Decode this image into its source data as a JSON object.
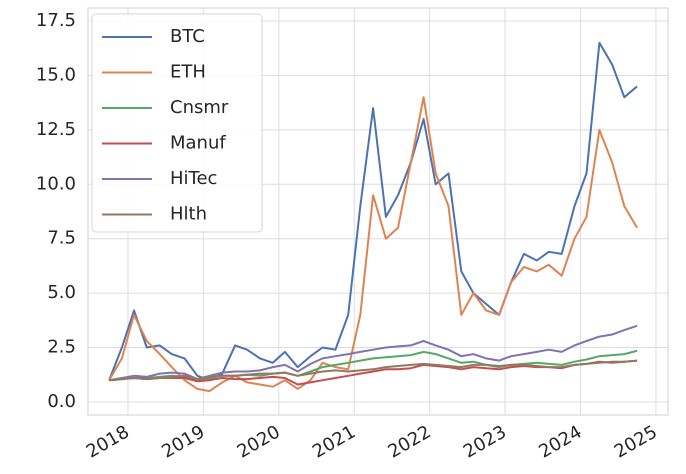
{
  "chart_data": {
    "type": "line",
    "x": [
      2017.75,
      2017.92,
      2018.08,
      2018.25,
      2018.42,
      2018.58,
      2018.75,
      2018.92,
      2019.08,
      2019.25,
      2019.42,
      2019.58,
      2019.75,
      2019.92,
      2020.08,
      2020.25,
      2020.42,
      2020.58,
      2020.75,
      2020.92,
      2021.08,
      2021.25,
      2021.42,
      2021.58,
      2021.75,
      2021.92,
      2022.08,
      2022.25,
      2022.42,
      2022.58,
      2022.75,
      2022.92,
      2023.08,
      2023.25,
      2023.42,
      2023.58,
      2023.75,
      2023.92,
      2024.08,
      2024.25,
      2024.42,
      2024.58,
      2024.75
    ],
    "series": [
      {
        "name": "BTC",
        "color": "#4c72b0",
        "values": [
          1.0,
          2.5,
          4.2,
          2.5,
          2.6,
          2.2,
          2.0,
          1.2,
          1.0,
          1.3,
          2.6,
          2.4,
          2.0,
          1.8,
          2.3,
          1.6,
          2.1,
          2.5,
          2.4,
          4.0,
          9.0,
          13.5,
          8.5,
          9.5,
          11.0,
          13.0,
          10.0,
          10.5,
          6.0,
          5.0,
          4.5,
          4.0,
          5.5,
          6.8,
          6.5,
          6.9,
          6.8,
          9.0,
          10.5,
          16.5,
          15.5,
          14.0,
          14.5
        ]
      },
      {
        "name": "ETH",
        "color": "#dd8452",
        "values": [
          1.0,
          2.0,
          4.0,
          2.8,
          2.2,
          1.6,
          1.0,
          0.6,
          0.5,
          0.9,
          1.2,
          0.9,
          0.8,
          0.7,
          1.0,
          0.6,
          1.0,
          1.8,
          1.6,
          1.5,
          4.0,
          9.5,
          7.5,
          8.0,
          11.0,
          14.0,
          10.5,
          9.0,
          4.0,
          5.0,
          4.2,
          4.0,
          5.5,
          6.2,
          6.0,
          6.3,
          5.8,
          7.5,
          8.5,
          12.5,
          11.0,
          9.0,
          8.0
        ]
      },
      {
        "name": "Cnsmr",
        "color": "#55a868",
        "values": [
          1.0,
          1.05,
          1.1,
          1.1,
          1.15,
          1.2,
          1.15,
          1.0,
          1.1,
          1.2,
          1.2,
          1.25,
          1.2,
          1.3,
          1.35,
          1.2,
          1.4,
          1.6,
          1.7,
          1.8,
          1.9,
          2.0,
          2.05,
          2.1,
          2.15,
          2.3,
          2.2,
          2.0,
          1.8,
          1.85,
          1.7,
          1.6,
          1.7,
          1.75,
          1.8,
          1.75,
          1.7,
          1.85,
          1.95,
          2.1,
          2.15,
          2.2,
          2.35
        ]
      },
      {
        "name": "Manuf",
        "color": "#c44e52",
        "values": [
          1.0,
          1.05,
          1.1,
          1.05,
          1.1,
          1.1,
          1.1,
          0.95,
          1.0,
          1.1,
          1.05,
          1.05,
          1.1,
          1.15,
          1.1,
          0.8,
          0.9,
          1.0,
          1.1,
          1.2,
          1.3,
          1.4,
          1.5,
          1.5,
          1.55,
          1.7,
          1.65,
          1.6,
          1.5,
          1.6,
          1.55,
          1.5,
          1.6,
          1.65,
          1.6,
          1.6,
          1.55,
          1.7,
          1.75,
          1.85,
          1.8,
          1.85,
          1.9
        ]
      },
      {
        "name": "HiTec",
        "color": "#8172b3",
        "values": [
          1.0,
          1.1,
          1.2,
          1.15,
          1.3,
          1.35,
          1.3,
          1.05,
          1.2,
          1.35,
          1.4,
          1.4,
          1.45,
          1.6,
          1.7,
          1.4,
          1.75,
          2.0,
          2.1,
          2.2,
          2.3,
          2.4,
          2.5,
          2.55,
          2.6,
          2.8,
          2.6,
          2.4,
          2.1,
          2.2,
          2.0,
          1.9,
          2.1,
          2.2,
          2.3,
          2.4,
          2.3,
          2.6,
          2.8,
          3.0,
          3.1,
          3.3,
          3.5
        ]
      },
      {
        "name": "Hlth",
        "color": "#937860",
        "values": [
          1.0,
          1.05,
          1.1,
          1.05,
          1.1,
          1.15,
          1.2,
          1.05,
          1.15,
          1.2,
          1.2,
          1.25,
          1.3,
          1.3,
          1.35,
          1.2,
          1.3,
          1.4,
          1.45,
          1.4,
          1.45,
          1.5,
          1.6,
          1.65,
          1.7,
          1.75,
          1.7,
          1.65,
          1.6,
          1.7,
          1.7,
          1.65,
          1.7,
          1.7,
          1.65,
          1.6,
          1.6,
          1.7,
          1.75,
          1.8,
          1.85,
          1.85,
          1.9
        ]
      }
    ],
    "xlim": [
      2017.47,
      2025.16
    ],
    "xticks": [
      2018,
      2019,
      2020,
      2021,
      2022,
      2023,
      2024,
      2025
    ],
    "ylim": [
      -0.6,
      18.1
    ],
    "yticks": [
      {
        "value": 0,
        "label": "0.0"
      },
      2.5,
      {
        "value": 5,
        "label": "5.0"
      },
      7.5,
      {
        "value": 10,
        "label": "10.0"
      },
      12.5,
      {
        "value": 15,
        "label": "15.0"
      },
      17.5
    ],
    "grid": true,
    "legend": "upper left"
  }
}
